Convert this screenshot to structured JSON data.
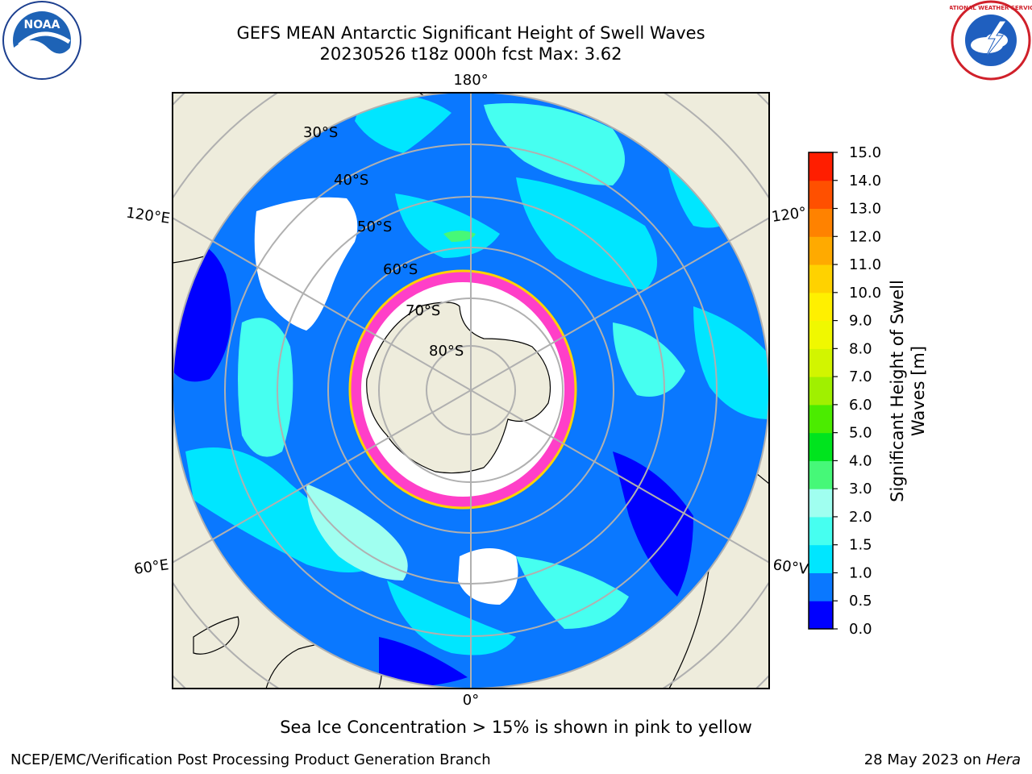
{
  "title_line1": "GEFS MEAN Antarctic Significant Height of Swell Waves",
  "title_line2": "20230526 t18z 000h fcst   Max: 3.62",
  "labels": {
    "lon_top": "180°",
    "lon_bottom": "0°",
    "lon_left_upper": "120°E",
    "lon_left_lower": "60°E",
    "lon_right_upper": "120°",
    "lon_right_lower": "60°V",
    "lat30": "30°S",
    "lat40": "40°S",
    "lat50": "50°S",
    "lat60": "60°S",
    "lat70": "70°S",
    "lat80": "80°S"
  },
  "colorbar": {
    "title_line1": "Significant Height of Swell",
    "title_line2": "Waves [m]",
    "ticks": [
      "0.0",
      "0.5",
      "1.0",
      "1.5",
      "2.0",
      "3.0",
      "4.0",
      "5.0",
      "6.0",
      "7.0",
      "8.0",
      "9.0",
      "10.0",
      "11.0",
      "12.0",
      "13.0",
      "14.0",
      "15.0"
    ],
    "colors": [
      "#0000ff",
      "#0a78ff",
      "#00e6ff",
      "#46fff0",
      "#a0fff0",
      "#46f878",
      "#00e41e",
      "#4bec00",
      "#a0f000",
      "#d2f500",
      "#f0f800",
      "#fff000",
      "#ffd200",
      "#ffaa00",
      "#ff8200",
      "#ff5000",
      "#ff1e00"
    ]
  },
  "sea_ice_note": "Sea Ice Concentration > 15% is shown in pink to yellow",
  "credit_left": "NCEP/EMC/Verification Post Processing Product Generation Branch",
  "credit_right_date": "28 May 2023 on",
  "credit_right_host": "Hera",
  "logos": {
    "left": "NOAA",
    "right": "NATIONAL WEATHER SERVICE"
  },
  "colors": {
    "land": "#eeecdc",
    "grid": "#b0b0b0",
    "ocean_base": "#0a78ff"
  }
}
